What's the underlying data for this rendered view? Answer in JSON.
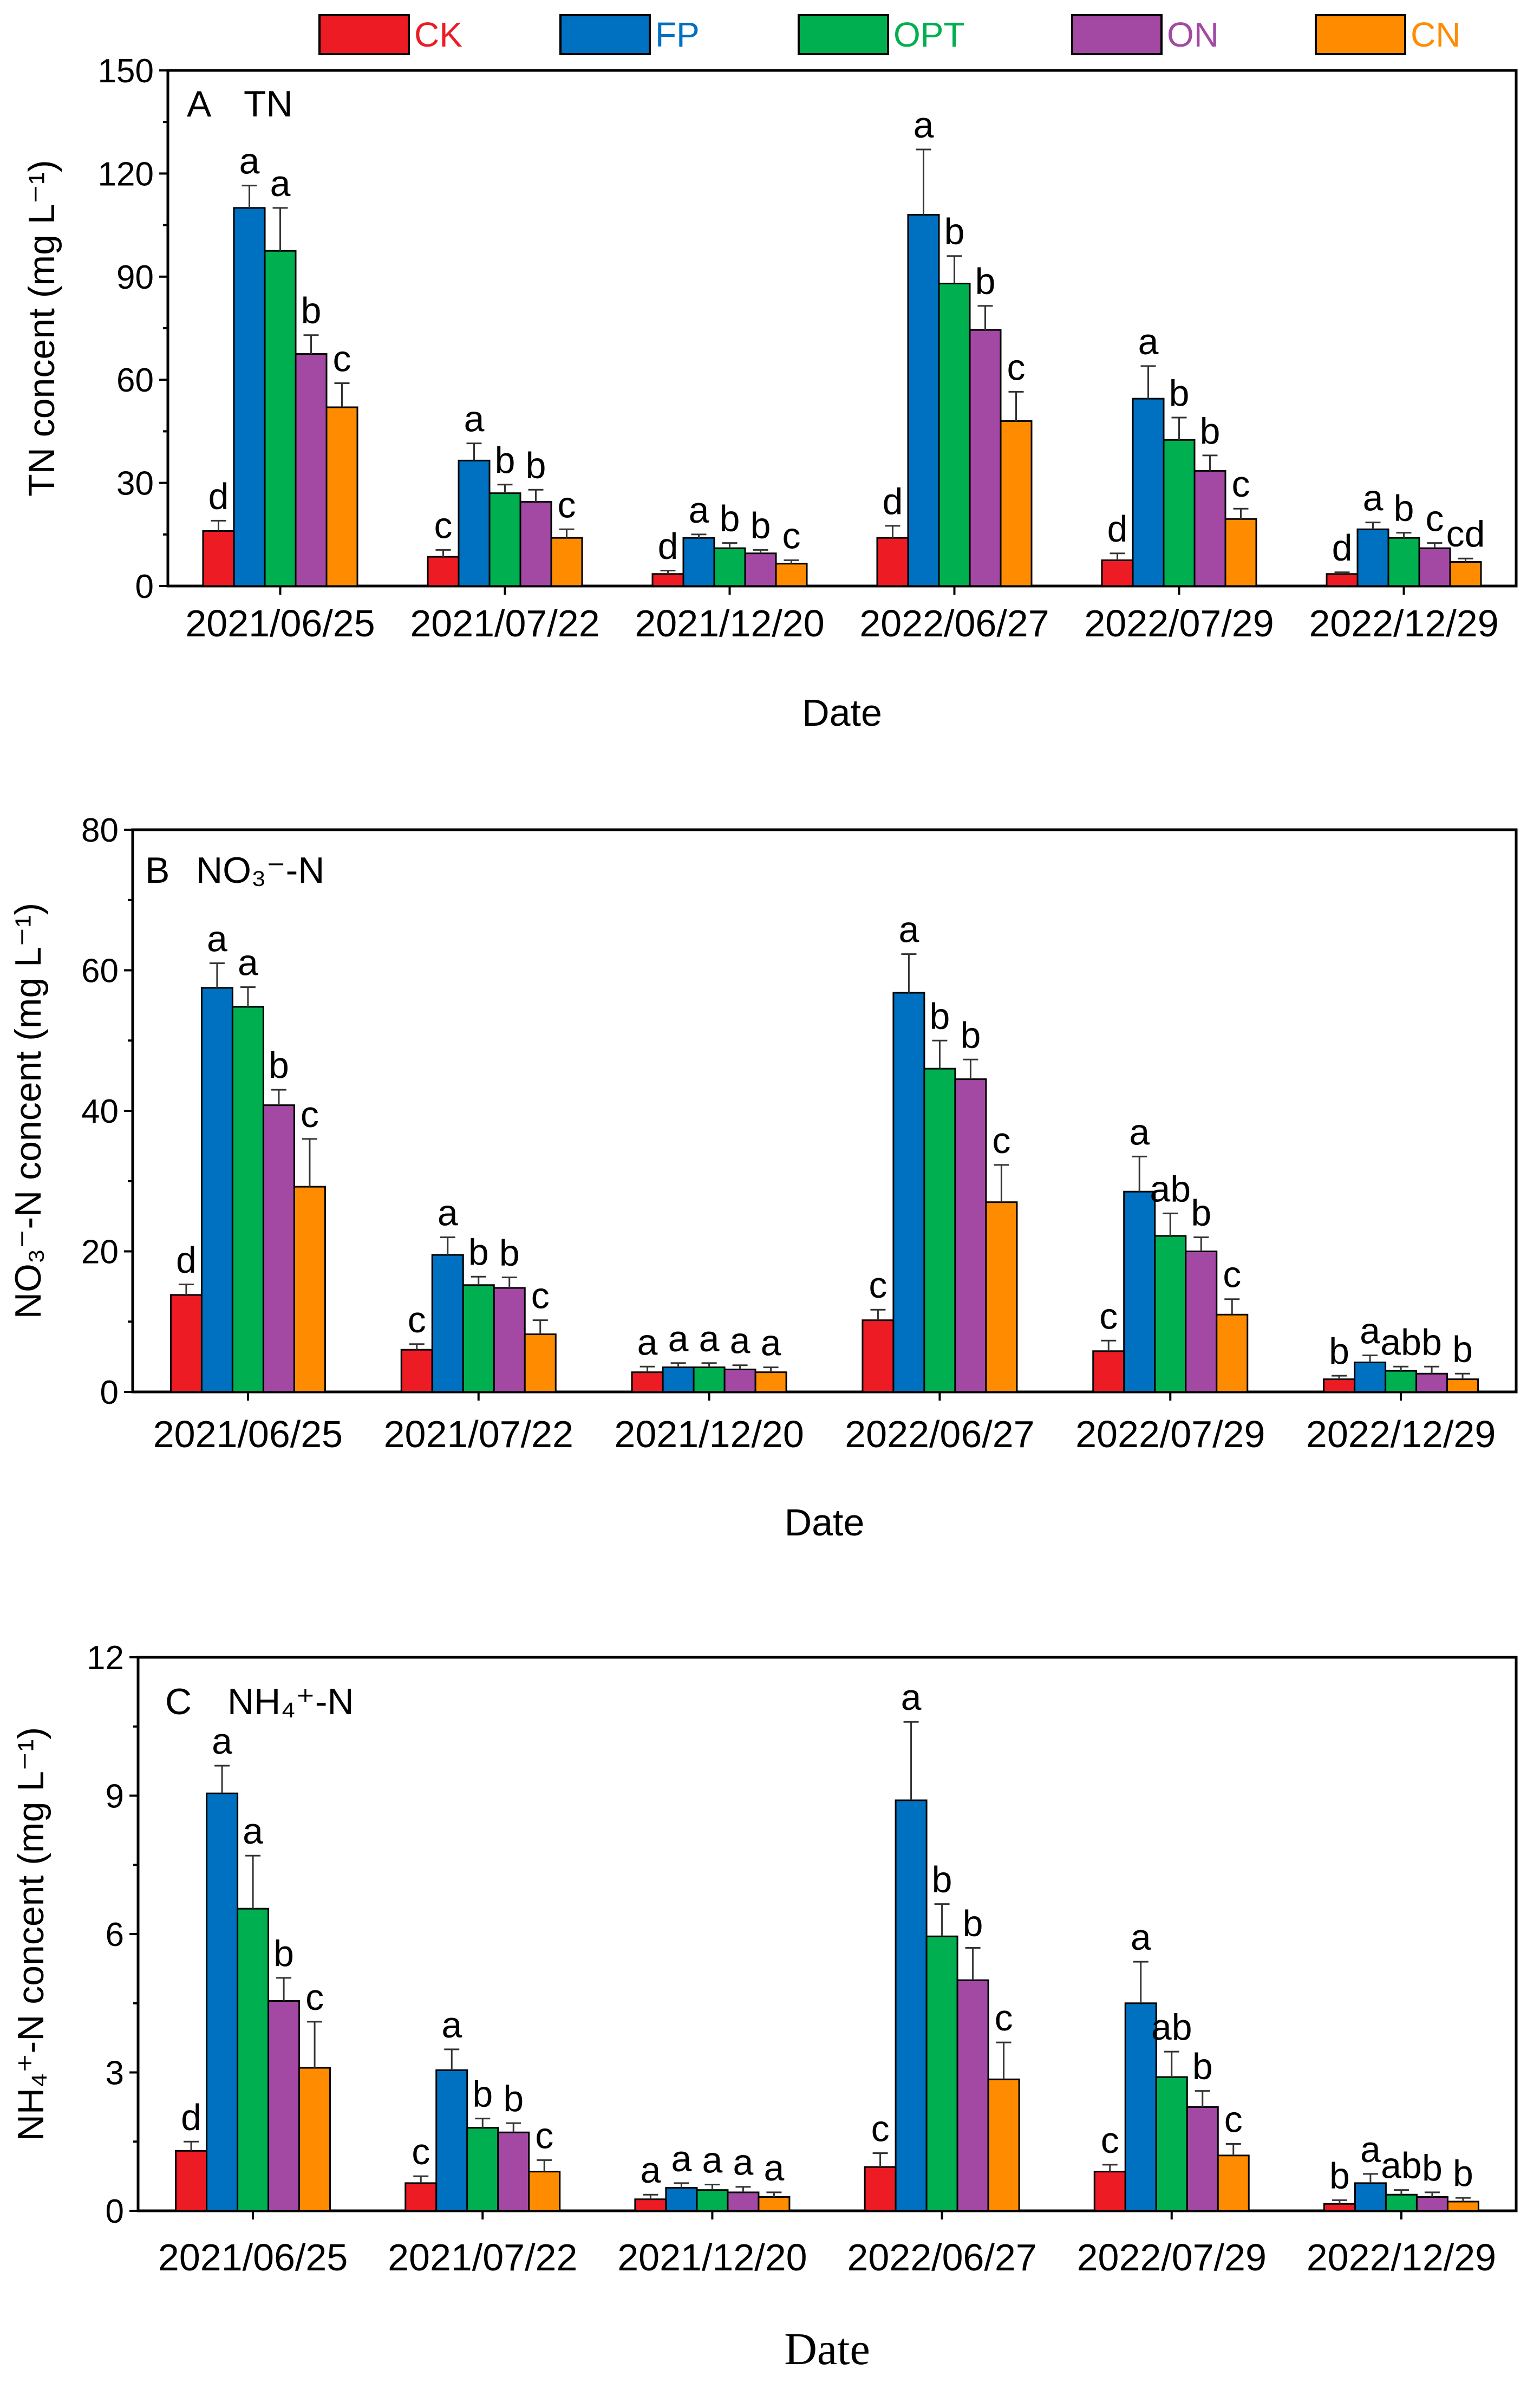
{
  "legend": [
    {
      "name": "CK",
      "color": "#ED1C24"
    },
    {
      "name": "FP",
      "color": "#0070C0"
    },
    {
      "name": "OPT",
      "color": "#00B050"
    },
    {
      "name": "ON",
      "color": "#A349A4"
    },
    {
      "name": "CN",
      "color": "#FF8C00"
    }
  ],
  "chart_data": [
    {
      "type": "bar",
      "panel": "A",
      "title": "TN",
      "ylabel": "TN concent (mg L⁻¹)",
      "xlabel": "Date",
      "ylim": [
        0,
        150
      ],
      "yticks": [
        0,
        30,
        60,
        90,
        120,
        150
      ],
      "categories": [
        "2021/06/25",
        "2021/07/22",
        "2021/12/20",
        "2022/06/27",
        "2022/07/29",
        "2022/12/29"
      ],
      "series": [
        {
          "name": "CK",
          "values": [
            16,
            8.5,
            3.5,
            14,
            7.5,
            3.5
          ],
          "errors": [
            3,
            2,
            1,
            3.5,
            2,
            0.5
          ],
          "labels": [
            "d",
            "c",
            "d",
            "d",
            "d",
            "d"
          ]
        },
        {
          "name": "FP",
          "values": [
            110,
            36.5,
            14,
            108,
            54.5,
            16.5
          ],
          "errors": [
            6.5,
            5,
            1,
            19,
            9.5,
            2
          ],
          "labels": [
            "a",
            "a",
            "a",
            "a",
            "a",
            "a"
          ]
        },
        {
          "name": "OPT",
          "values": [
            97.5,
            27,
            11,
            88,
            42.5,
            14
          ],
          "errors": [
            12.5,
            2.5,
            1.5,
            8,
            6.5,
            1.5
          ],
          "labels": [
            "a",
            "b",
            "b",
            "b",
            "b",
            "b"
          ]
        },
        {
          "name": "ON",
          "values": [
            67.5,
            24.5,
            9.5,
            74.5,
            33.5,
            11
          ],
          "errors": [
            5.5,
            3.5,
            1,
            7,
            4.5,
            1.5
          ],
          "labels": [
            "b",
            "b",
            "b",
            "b",
            "b",
            "c"
          ]
        },
        {
          "name": "CN",
          "values": [
            52,
            14,
            6.5,
            48,
            19.5,
            7
          ],
          "errors": [
            7,
            2.5,
            1,
            8.5,
            3,
            1
          ],
          "labels": [
            "c",
            "c",
            "c",
            "c",
            "c",
            "cd"
          ]
        }
      ]
    },
    {
      "type": "bar",
      "panel": "B",
      "title": "NO₃⁻-N",
      "ylabel": "NO₃⁻-N concent (mg L⁻¹)",
      "xlabel": "Date",
      "ylim": [
        0,
        80
      ],
      "yticks": [
        0,
        20,
        40,
        60,
        80
      ],
      "categories": [
        "2021/06/25",
        "2021/07/22",
        "2021/12/20",
        "2022/06/27",
        "2022/07/29",
        "2022/12/29"
      ],
      "series": [
        {
          "name": "CK",
          "values": [
            13.8,
            6,
            2.8,
            10.2,
            5.8,
            1.8
          ],
          "errors": [
            1.5,
            0.8,
            0.8,
            1.5,
            1.5,
            0.5
          ],
          "labels": [
            "d",
            "c",
            "a",
            "c",
            "c",
            "b"
          ]
        },
        {
          "name": "FP",
          "values": [
            57.5,
            19.5,
            3.5,
            56.8,
            28.5,
            4.2
          ],
          "errors": [
            3.5,
            2.5,
            0.6,
            5.5,
            5,
            1
          ],
          "labels": [
            "a",
            "a",
            "a",
            "a",
            "a",
            "a"
          ]
        },
        {
          "name": "OPT",
          "values": [
            54.8,
            15.2,
            3.5,
            46,
            22.2,
            3
          ],
          "errors": [
            2.8,
            1.2,
            0.6,
            4,
            3.2,
            0.6
          ],
          "labels": [
            "a",
            "b",
            "a",
            "b",
            "ab",
            "ab"
          ]
        },
        {
          "name": "ON",
          "values": [
            40.8,
            14.8,
            3.2,
            44.5,
            20,
            2.6
          ],
          "errors": [
            2.2,
            1.5,
            0.6,
            2.8,
            2,
            1
          ],
          "labels": [
            "b",
            "b",
            "a",
            "b",
            "b",
            "b"
          ]
        },
        {
          "name": "CN",
          "values": [
            29.2,
            8.2,
            2.8,
            27,
            11,
            1.8
          ],
          "errors": [
            6.8,
            2,
            0.7,
            5.3,
            2.2,
            0.8
          ],
          "labels": [
            "c",
            "c",
            "a",
            "c",
            "c",
            "b"
          ]
        }
      ]
    },
    {
      "type": "bar",
      "panel": "C",
      "title": "NH₄⁺-N",
      "ylabel": "NH₄⁺-N concent (mg L⁻¹)",
      "xlabel": "Date",
      "ylim": [
        0,
        12
      ],
      "yticks": [
        0,
        3,
        6,
        9,
        12
      ],
      "categories": [
        "2021/06/25",
        "2021/07/22",
        "2021/12/20",
        "2022/06/27",
        "2022/07/29",
        "2022/12/29"
      ],
      "series": [
        {
          "name": "CK",
          "values": [
            1.3,
            0.6,
            0.25,
            0.95,
            0.85,
            0.15
          ],
          "errors": [
            0.2,
            0.15,
            0.1,
            0.3,
            0.15,
            0.08
          ],
          "labels": [
            "d",
            "c",
            "a",
            "c",
            "c",
            "b"
          ]
        },
        {
          "name": "FP",
          "values": [
            9.05,
            3.05,
            0.5,
            8.9,
            4.5,
            0.6
          ],
          "errors": [
            0.6,
            0.45,
            0.1,
            1.7,
            0.9,
            0.2
          ],
          "labels": [
            "a",
            "a",
            "a",
            "a",
            "a",
            "a"
          ]
        },
        {
          "name": "OPT",
          "values": [
            6.55,
            1.8,
            0.45,
            5.95,
            2.9,
            0.35
          ],
          "errors": [
            1.15,
            0.2,
            0.12,
            0.7,
            0.55,
            0.1
          ],
          "labels": [
            "a",
            "b",
            "a",
            "b",
            "ab",
            "ab"
          ]
        },
        {
          "name": "ON",
          "values": [
            4.55,
            1.7,
            0.4,
            5,
            2.25,
            0.3
          ],
          "errors": [
            0.5,
            0.2,
            0.12,
            0.7,
            0.35,
            0.1
          ],
          "labels": [
            "b",
            "b",
            "a",
            "b",
            "b",
            "b"
          ]
        },
        {
          "name": "CN",
          "values": [
            3.1,
            0.85,
            0.3,
            2.85,
            1.2,
            0.2
          ],
          "errors": [
            1,
            0.25,
            0.1,
            0.8,
            0.25,
            0.08
          ],
          "labels": [
            "c",
            "c",
            "a",
            "c",
            "c",
            "b"
          ]
        }
      ]
    }
  ]
}
